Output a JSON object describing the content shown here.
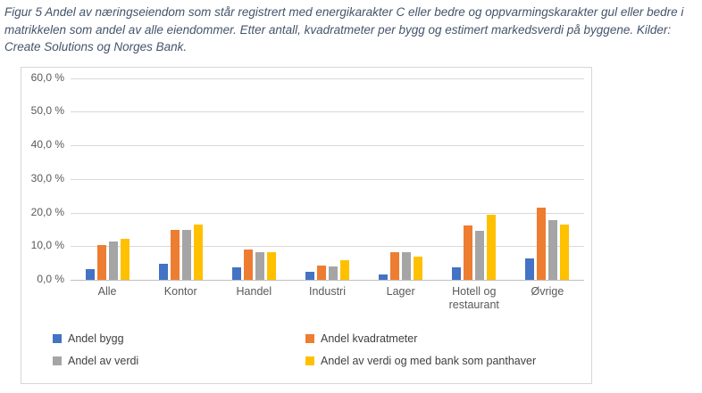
{
  "caption": "Figur 5 Andel av næringseiendom som står registrert med energikarakter C eller bedre og oppvarmingskarakter gul eller bedre i matrikkelen som andel av alle eiendommer. Etter antall, kvadratmeter per bygg og estimert markedsverdi på byggene. Kilder: Create Solutions og Norges Bank.",
  "chart_data": {
    "type": "bar",
    "title": "",
    "categories": [
      "Alle",
      "Kontor",
      "Handel",
      "Industri",
      "Lager",
      "Hotell og restaurant",
      "Øvrige"
    ],
    "series": [
      {
        "name": "Andel bygg",
        "color": "#4472C4",
        "values": [
          3.3,
          4.8,
          3.6,
          2.4,
          1.6,
          3.6,
          6.4
        ]
      },
      {
        "name": "Andel kvadratmeter",
        "color": "#ED7D31",
        "values": [
          10.4,
          14.9,
          9.0,
          4.2,
          8.2,
          16.1,
          21.4
        ]
      },
      {
        "name": "Andel av verdi",
        "color": "#A5A5A5",
        "values": [
          11.5,
          14.9,
          8.3,
          4.1,
          8.3,
          14.5,
          17.7
        ]
      },
      {
        "name": "Andel av verdi og med bank som panthaver",
        "color": "#FFC000",
        "values": [
          12.3,
          16.5,
          8.2,
          5.7,
          6.9,
          19.3,
          16.3
        ]
      }
    ],
    "ylim": [
      0,
      60
    ],
    "yticks": [
      {
        "value": 0,
        "label": "0,0 %"
      },
      {
        "value": 10,
        "label": "10,0 %"
      },
      {
        "value": 20,
        "label": "20,0 %"
      },
      {
        "value": 30,
        "label": "30,0 %"
      },
      {
        "value": 40,
        "label": "40,0 %"
      },
      {
        "value": 50,
        "label": "50,0 %"
      },
      {
        "value": 60,
        "label": "60,0 %"
      }
    ],
    "grid": true,
    "legend_position": "bottom"
  },
  "colors": {
    "gridline": "#D9D9D9",
    "axis_line": "#BFBFBF",
    "tick_text": "#595959",
    "caption_text": "#44546A",
    "chart_border": "#D6D6D6"
  }
}
